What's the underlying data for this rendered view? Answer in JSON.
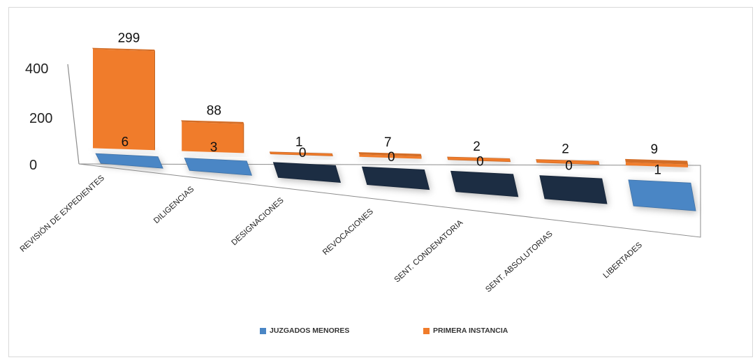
{
  "chart_data": {
    "type": "bar",
    "categories": [
      "REVISIÓN DE EXPEDIENTES",
      "DILIGENCIAS",
      "DESIGNACIONES",
      "REVOCACIONES",
      "SENT. CONDENATORIA",
      "SENT. ABSOLUTORIAS",
      "LIBERTADES"
    ],
    "series": [
      {
        "name": "JUZGADOS MENORES",
        "values": [
          6,
          3,
          0,
          0,
          0,
          0,
          1
        ],
        "color": "#4a86c5"
      },
      {
        "name": "PRIMERA INSTANCIA",
        "values": [
          299,
          88,
          1,
          7,
          2,
          2,
          9
        ],
        "color": "#f07c2b"
      }
    ],
    "y_ticks": [
      "0",
      "200",
      "400"
    ],
    "ylim": [
      0,
      400
    ],
    "style": "3D perspective column",
    "grid": false,
    "legend_position": "bottom"
  },
  "colors": {
    "zero_value_tile": "#1c2d43",
    "floor": "#ffffff",
    "shadow": "#9a9a9a"
  }
}
